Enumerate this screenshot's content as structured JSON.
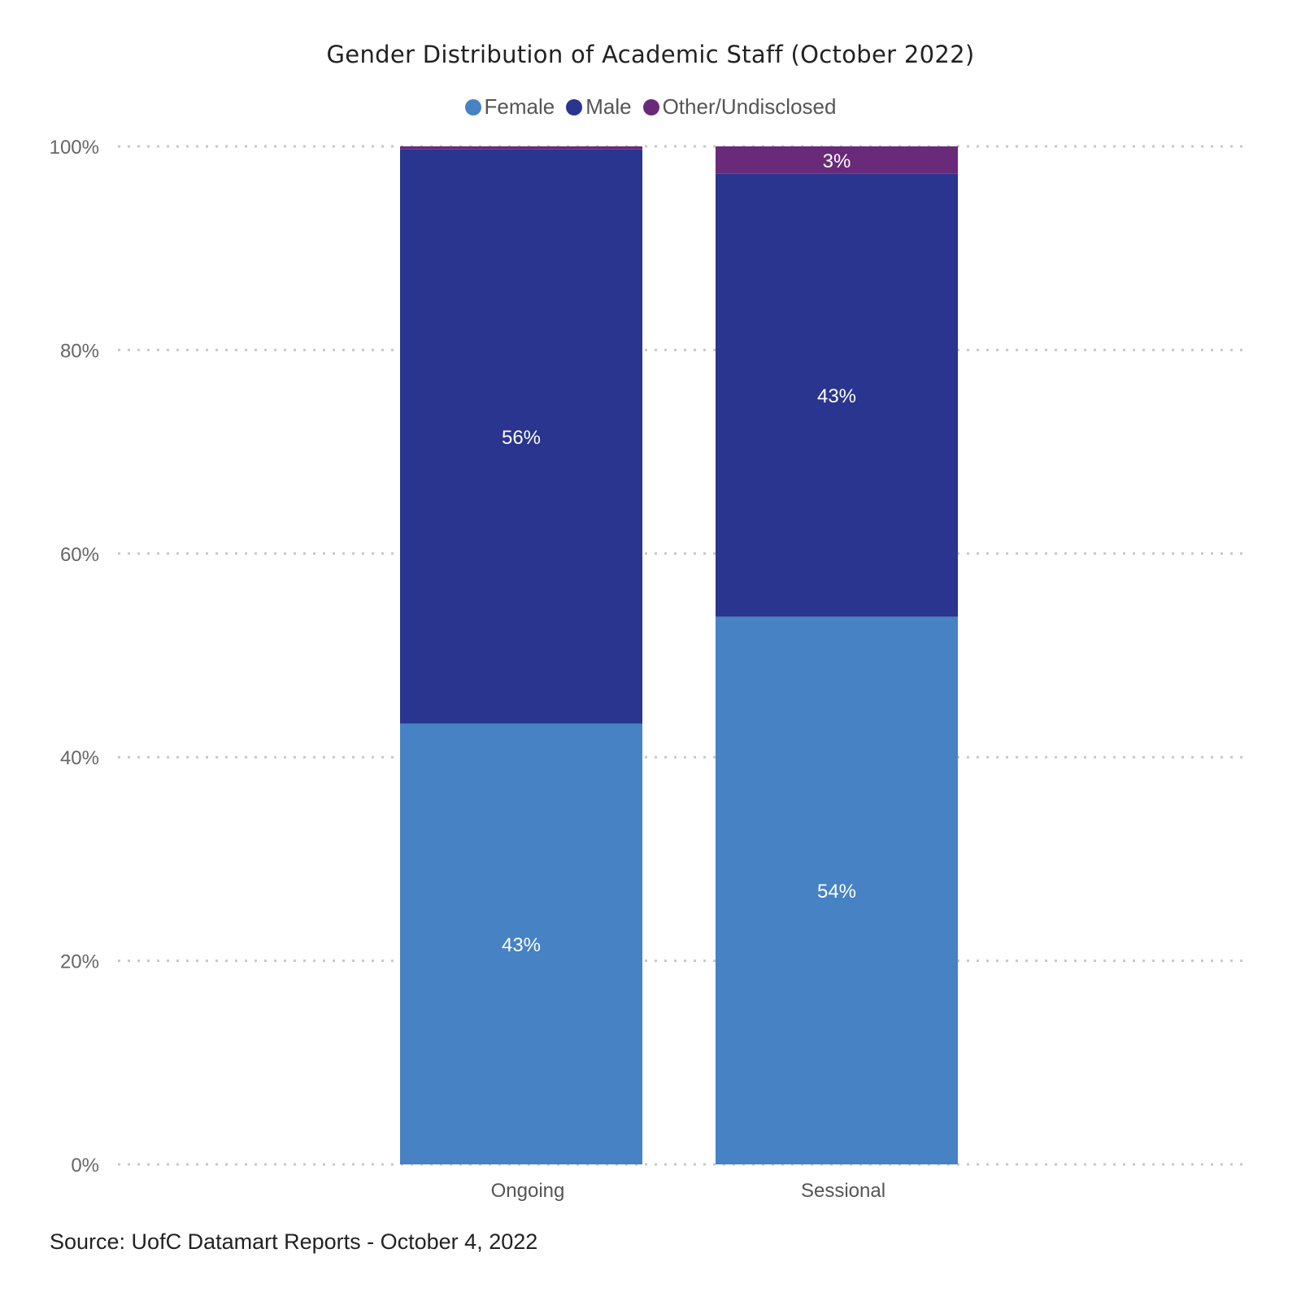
{
  "chart_data": {
    "type": "bar",
    "stacked": true,
    "normalized": true,
    "title": "Gender Distribution of Academic Staff (October 2022)",
    "categories": [
      "Ongoing",
      "Sessional"
    ],
    "series": [
      {
        "name": "Female",
        "color": "#4682C4",
        "values": [
          43.3,
          53.8
        ],
        "labels": [
          "43%",
          "54%"
        ]
      },
      {
        "name": "Male",
        "color": "#29358F",
        "values": [
          56.4,
          43.5
        ],
        "labels": [
          "56%",
          "43%"
        ]
      },
      {
        "name": "Other/Undisclosed",
        "color": "#6A2A7A",
        "values": [
          0.3,
          2.7
        ],
        "labels": [
          "",
          "3%"
        ]
      }
    ],
    "xlabel": "",
    "ylabel": "",
    "ylim": [
      0,
      100
    ],
    "yticks": [
      0,
      20,
      40,
      60,
      80,
      100
    ],
    "ytick_labels": [
      "0%",
      "20%",
      "40%",
      "60%",
      "80%",
      "100%"
    ],
    "grid": true,
    "legend_position": "top-center"
  },
  "footer": {
    "source": "Source: UofC Datamart Reports - October 4, 2022"
  }
}
